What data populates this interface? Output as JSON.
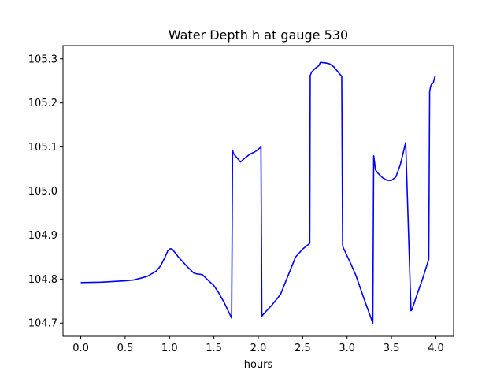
{
  "chart_data": {
    "type": "line",
    "title": "Water Depth h at gauge 530",
    "xlabel": "hours",
    "ylabel": "",
    "xlim": [
      -0.2,
      4.2
    ],
    "ylim": [
      104.67,
      105.33
    ],
    "xticks": [
      0.0,
      0.5,
      1.0,
      1.5,
      2.0,
      2.5,
      3.0,
      3.5,
      4.0
    ],
    "xtick_labels": [
      "0.0",
      "0.5",
      "1.0",
      "1.5",
      "2.0",
      "2.5",
      "3.0",
      "3.5",
      "4.0"
    ],
    "yticks": [
      104.7,
      104.8,
      104.9,
      105.0,
      105.1,
      105.2,
      105.3
    ],
    "ytick_labels": [
      "104.7",
      "104.8",
      "104.9",
      "105.0",
      "105.1",
      "105.2",
      "105.3"
    ],
    "grid": false,
    "series": [
      {
        "color": "#0000ff",
        "x": [
          0.0,
          0.25,
          0.5,
          0.6,
          0.75,
          0.85,
          0.9,
          0.95,
          0.98,
          1.01,
          1.03,
          1.1,
          1.2,
          1.27,
          1.3,
          1.37,
          1.42,
          1.5,
          1.55,
          1.62,
          1.7,
          1.71,
          1.72,
          1.8,
          1.81,
          1.85,
          1.9,
          1.97,
          2.03,
          2.04,
          2.08,
          2.15,
          2.25,
          2.32,
          2.42,
          2.5,
          2.58,
          2.585,
          2.6,
          2.65,
          2.68,
          2.7,
          2.75,
          2.8,
          2.85,
          2.9,
          2.94,
          2.95,
          2.96,
          3.03,
          3.1,
          3.2,
          3.29,
          3.3,
          3.31,
          3.32,
          3.35,
          3.4,
          3.45,
          3.5,
          3.55,
          3.6,
          3.66,
          3.72,
          3.73,
          3.78,
          3.85,
          3.92,
          3.93,
          3.94,
          3.95,
          3.97,
          3.99,
          4.0
        ],
        "y": [
          104.792,
          104.793,
          104.796,
          104.798,
          104.806,
          104.818,
          104.83,
          104.85,
          104.864,
          104.869,
          104.868,
          104.85,
          104.828,
          104.814,
          104.812,
          104.81,
          104.8,
          104.785,
          104.77,
          104.745,
          104.711,
          105.093,
          105.085,
          105.066,
          105.068,
          105.075,
          105.083,
          105.09,
          105.1,
          104.716,
          104.725,
          104.74,
          104.765,
          104.8,
          104.85,
          104.868,
          104.881,
          105.262,
          105.27,
          105.28,
          105.284,
          105.292,
          105.291,
          105.289,
          105.282,
          105.27,
          105.26,
          104.876,
          104.87,
          104.84,
          104.808,
          104.75,
          104.7,
          105.08,
          105.065,
          105.048,
          105.04,
          105.03,
          105.024,
          105.024,
          105.032,
          105.06,
          105.11,
          104.728,
          104.73,
          104.76,
          104.8,
          104.845,
          105.225,
          105.237,
          105.242,
          105.245,
          105.26,
          105.262
        ]
      }
    ]
  }
}
